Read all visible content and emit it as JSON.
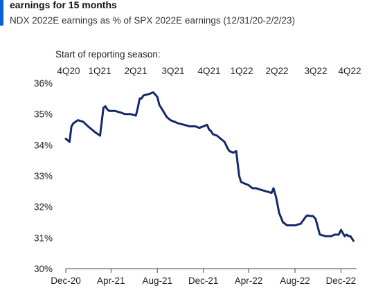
{
  "header": {
    "title": "earnings for 15 months",
    "subtitle": "NDX 2022E earnings as % of SPX 2022E earnings (12/31/20-2/2/23)",
    "accent_color": "#0a62d0"
  },
  "season_header": "Start of reporting season:",
  "chart_data": {
    "type": "line",
    "title": "",
    "xlabel": "",
    "ylabel": "",
    "ylim": [
      30,
      36
    ],
    "yticks": [
      "30%",
      "31%",
      "32%",
      "33%",
      "34%",
      "35%",
      "36%"
    ],
    "yunit": "%",
    "xticks": [
      "Dec-20",
      "Apr-21",
      "Aug-21",
      "Dec-21",
      "Apr-22",
      "Aug-22",
      "Dec-22"
    ],
    "seasons": [
      "4Q20",
      "1Q21",
      "2Q21",
      "3Q21",
      "4Q21",
      "1Q22",
      "2Q22",
      "3Q22",
      "4Q22"
    ],
    "line_color": "#14296b",
    "series": [
      {
        "x": [
          "2020-12-31",
          "2021-01-10",
          "2021-01-15",
          "2021-01-20",
          "2021-02-01",
          "2021-02-15",
          "2021-02-28",
          "2021-03-10",
          "2021-03-20",
          "2021-04-01",
          "2021-04-10",
          "2021-04-15",
          "2021-04-20",
          "2021-04-25",
          "2021-05-10",
          "2021-05-25",
          "2021-06-05",
          "2021-06-20",
          "2021-07-05",
          "2021-07-10",
          "2021-07-15",
          "2021-07-20",
          "2021-07-25",
          "2021-08-10",
          "2021-08-20",
          "2021-08-31",
          "2021-09-05",
          "2021-09-15",
          "2021-09-25",
          "2021-10-05",
          "2021-10-15",
          "2021-10-25",
          "2021-11-10",
          "2021-11-25",
          "2021-12-10",
          "2021-12-20",
          "2021-12-31",
          "2022-01-10",
          "2022-01-15",
          "2022-01-20",
          "2022-01-25",
          "2022-02-05",
          "2022-02-15",
          "2022-02-25",
          "2022-03-05",
          "2022-03-10",
          "2022-03-20",
          "2022-03-28",
          "2022-04-05",
          "2022-04-10",
          "2022-04-20",
          "2022-04-30",
          "2022-05-10",
          "2022-05-20",
          "2022-06-01",
          "2022-06-15",
          "2022-06-30",
          "2022-07-05",
          "2022-07-12",
          "2022-07-20",
          "2022-07-30",
          "2022-08-10",
          "2022-08-20",
          "2022-08-31",
          "2022-09-15",
          "2022-09-30",
          "2022-10-05",
          "2022-10-10",
          "2022-10-18",
          "2022-10-25",
          "2022-11-05",
          "2022-11-20",
          "2022-12-05",
          "2022-12-15",
          "2022-12-25",
          "2022-12-31",
          "2023-01-10",
          "2023-01-15",
          "2023-01-20",
          "2023-01-25",
          "2023-02-02"
        ],
        "y": [
          34.2,
          34.1,
          34.6,
          34.7,
          34.8,
          34.75,
          34.6,
          34.5,
          34.4,
          34.3,
          35.2,
          35.25,
          35.15,
          35.1,
          35.1,
          35.05,
          35.0,
          35.0,
          34.95,
          35.2,
          35.5,
          35.5,
          35.6,
          35.65,
          35.7,
          35.55,
          35.3,
          35.1,
          34.9,
          34.8,
          34.75,
          34.7,
          34.65,
          34.6,
          34.6,
          34.55,
          34.6,
          34.65,
          34.5,
          34.45,
          34.35,
          34.3,
          34.2,
          34.1,
          33.9,
          33.8,
          33.75,
          33.8,
          33.0,
          32.8,
          32.75,
          32.7,
          32.6,
          32.6,
          32.55,
          32.5,
          32.45,
          32.6,
          32.3,
          31.8,
          31.5,
          31.4,
          31.4,
          31.4,
          31.45,
          31.7,
          31.72,
          31.7,
          31.7,
          31.6,
          31.1,
          31.05,
          31.05,
          31.1,
          31.1,
          31.25,
          31.05,
          31.1,
          31.05,
          31.05,
          30.9
        ]
      }
    ]
  }
}
